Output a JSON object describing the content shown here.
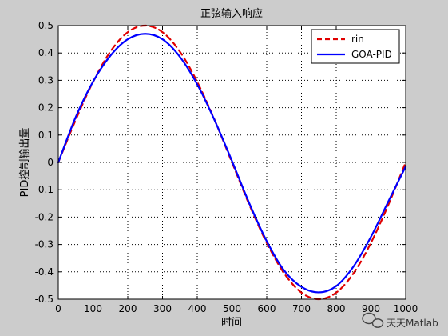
{
  "chart_data": {
    "type": "line",
    "title": "正弦输入响应",
    "xlabel": "时间",
    "ylabel": "PID控制输出量",
    "xlim": [
      0,
      1000
    ],
    "ylim": [
      -0.5,
      0.5
    ],
    "x_ticks": [
      0,
      100,
      200,
      300,
      400,
      500,
      600,
      700,
      800,
      900,
      1000
    ],
    "y_ticks": [
      -0.5,
      -0.4,
      -0.3,
      -0.2,
      -0.1,
      0,
      0.1,
      0.2,
      0.3,
      0.4,
      0.5
    ],
    "x_tick_labels": [
      "0",
      "100",
      "200",
      "300",
      "400",
      "500",
      "600",
      "700",
      "800",
      "900",
      "1000"
    ],
    "y_tick_labels": [
      "-0.5",
      "-0.4",
      "-0.3",
      "-0.2",
      "-0.1",
      "0",
      "0.1",
      "0.2",
      "0.3",
      "0.4",
      "0.5"
    ],
    "grid": true,
    "legend_position": "top-right",
    "series": [
      {
        "name": "rin",
        "color": "#e00000",
        "style": "dashed",
        "x": [
          0,
          50,
          100,
          150,
          200,
          250,
          300,
          350,
          400,
          450,
          500,
          550,
          600,
          650,
          700,
          750,
          800,
          850,
          900,
          950,
          1000
        ],
        "values": [
          0,
          0.155,
          0.294,
          0.405,
          0.476,
          0.5,
          0.476,
          0.405,
          0.294,
          0.155,
          0,
          -0.155,
          -0.294,
          -0.405,
          -0.476,
          -0.5,
          -0.476,
          -0.405,
          -0.294,
          -0.155,
          0
        ]
      },
      {
        "name": "GOA-PID",
        "color": "#0000ff",
        "style": "solid",
        "x": [
          0,
          50,
          100,
          150,
          200,
          250,
          300,
          350,
          400,
          450,
          500,
          550,
          600,
          650,
          700,
          750,
          800,
          850,
          900,
          950,
          1000
        ],
        "values": [
          0,
          0.165,
          0.295,
          0.39,
          0.45,
          0.47,
          0.45,
          0.386,
          0.285,
          0.154,
          0.005,
          -0.15,
          -0.288,
          -0.395,
          -0.455,
          -0.475,
          -0.452,
          -0.38,
          -0.272,
          -0.143,
          -0.015
        ]
      }
    ]
  },
  "watermark": {
    "text": "天天Matlab",
    "icon": "wechat-icon"
  }
}
